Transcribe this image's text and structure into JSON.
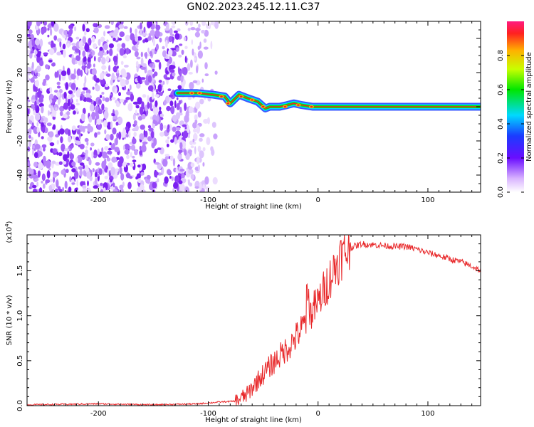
{
  "title": "GN02.2023.245.12.11.C37",
  "top_panel": {
    "xlabel": "Height of straight line (km)",
    "ylabel": "Frequency (Hz)",
    "xticks": [
      "-200",
      "-100",
      "0",
      "100"
    ],
    "yticks": [
      "40",
      "20",
      "0",
      "-20",
      "-40"
    ],
    "colorbar_label": "Normalized spectral amplitude",
    "colorbar_ticks": [
      "0.0",
      "0.2",
      "0.4",
      "0.6",
      "0.8"
    ]
  },
  "bottom_panel": {
    "xlabel": "Height of straight line (km)",
    "ylabel": "SNR (10 * v/v)",
    "scale_label": "(x10",
    "scale_exp": "4",
    "scale_close": ")",
    "xticks": [
      "-200",
      "-100",
      "0",
      "100"
    ],
    "yticks": [
      "0.0",
      "0.5",
      "1.0",
      "1.5"
    ]
  },
  "colors": {
    "snr_line": "#e8282a",
    "noise": "#7a1ff0",
    "ridge": "#e8282a"
  },
  "chart_data": [
    {
      "type": "heatmap",
      "title": "GN02.2023.245.12.11.C37",
      "xlabel": "Height of straight line (km)",
      "ylabel": "Frequency (Hz)",
      "xlim": [
        -265,
        148
      ],
      "ylim": [
        -50,
        50
      ],
      "grid": false,
      "colorbar": {
        "label": "Normalized spectral amplitude",
        "range": [
          0.0,
          1.0
        ]
      },
      "description_points": {
        "ridge_x": [
          -128,
          -110,
          -95,
          -85,
          -80,
          -72,
          -64,
          -55,
          -48,
          -44,
          -35,
          -28,
          -22,
          -15,
          -5,
          0,
          148
        ],
        "ridge_y": [
          8,
          8,
          7,
          6,
          2,
          7,
          5,
          3,
          -1,
          0,
          0,
          1,
          2,
          1,
          0,
          0,
          0
        ]
      }
    },
    {
      "type": "line",
      "xlabel": "Height of straight line (km)",
      "ylabel": "SNR (10 * v/v)",
      "xlim": [
        -265,
        148
      ],
      "ylim": [
        0,
        1.9
      ],
      "y_multiplier": "x10^4",
      "grid": false,
      "series": [
        {
          "x": [
            -265,
            -200,
            -150,
            -110,
            -90,
            -75,
            -65,
            -55,
            -45,
            -35,
            -25,
            -15,
            -8,
            0,
            10,
            20,
            30,
            40,
            50,
            60,
            70,
            80,
            90,
            100,
            110,
            120,
            130,
            140,
            148
          ],
          "values": [
            0.01,
            0.02,
            0.01,
            0.02,
            0.04,
            0.05,
            0.12,
            0.28,
            0.42,
            0.55,
            0.68,
            0.85,
            1.0,
            1.15,
            1.4,
            1.65,
            1.76,
            1.8,
            1.79,
            1.78,
            1.77,
            1.77,
            1.74,
            1.7,
            1.67,
            1.63,
            1.6,
            1.55,
            1.5
          ]
        }
      ]
    }
  ]
}
